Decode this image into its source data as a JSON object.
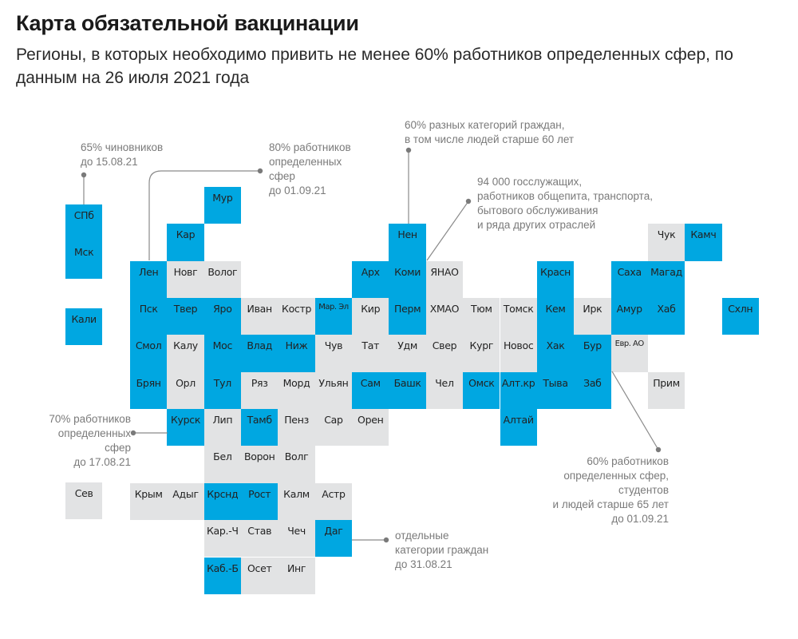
{
  "header": {
    "title": "Карта обязательной вакцинации",
    "subtitle": "Регионы, в которых необходимо привить не менее 60% работников определенных сфер, по данным на 26 июля 2021 года"
  },
  "colors": {
    "mandatory": "#00A7E1",
    "other": "#E2E3E4",
    "annotation_text": "#7A7A7A",
    "line": "#8A8A8A"
  },
  "legend_categories": {
    "B": "mandatory vaccination region",
    "G": "other region"
  },
  "regions": [
    {
      "name": "СПб",
      "grid": "west",
      "col": 0,
      "row": 0,
      "status": "B"
    },
    {
      "name": "Мск",
      "grid": "west",
      "col": 0,
      "row": 1,
      "status": "B"
    },
    {
      "name": "Кали",
      "grid": "west",
      "col": 0,
      "row": 2.8,
      "status": "B"
    },
    {
      "name": "Сев",
      "grid": "west",
      "col": 0,
      "row": 7.5,
      "status": "G"
    },
    {
      "name": "Мур",
      "col": 2,
      "row": 0,
      "status": "B"
    },
    {
      "name": "Кар",
      "col": 1,
      "row": 1,
      "status": "B"
    },
    {
      "name": "Нен",
      "col": 7,
      "row": 1,
      "status": "B"
    },
    {
      "name": "Чук",
      "col": 14,
      "row": 1,
      "status": "G"
    },
    {
      "name": "Камч",
      "col": 15,
      "row": 1,
      "status": "B"
    },
    {
      "name": "Лен",
      "col": 0,
      "row": 2,
      "status": "B"
    },
    {
      "name": "Новг",
      "col": 1,
      "row": 2,
      "status": "G"
    },
    {
      "name": "Волог",
      "col": 2,
      "row": 2,
      "status": "G"
    },
    {
      "name": "Арх",
      "col": 6,
      "row": 2,
      "status": "B"
    },
    {
      "name": "Коми",
      "col": 7,
      "row": 2,
      "status": "B"
    },
    {
      "name": "ЯНАО",
      "col": 8,
      "row": 2,
      "status": "G"
    },
    {
      "name": "Красн",
      "col": 11,
      "row": 2,
      "status": "B"
    },
    {
      "name": "Саха",
      "col": 13,
      "row": 2,
      "status": "B"
    },
    {
      "name": "Магад",
      "col": 14,
      "row": 2,
      "status": "B"
    },
    {
      "name": "Пск",
      "col": 0,
      "row": 3,
      "status": "B"
    },
    {
      "name": "Твер",
      "col": 1,
      "row": 3,
      "status": "B"
    },
    {
      "name": "Яро",
      "col": 2,
      "row": 3,
      "status": "B"
    },
    {
      "name": "Иван",
      "col": 3,
      "row": 3,
      "status": "G"
    },
    {
      "name": "Костр",
      "col": 4,
      "row": 3,
      "status": "G"
    },
    {
      "name": "Мар. Эл",
      "col": 5,
      "row": 3,
      "status": "B",
      "small": true
    },
    {
      "name": "Кир",
      "col": 6,
      "row": 3,
      "status": "G"
    },
    {
      "name": "Перм",
      "col": 7,
      "row": 3,
      "status": "B"
    },
    {
      "name": "ХМАО",
      "col": 8,
      "row": 3,
      "status": "G"
    },
    {
      "name": "Тюм",
      "col": 9,
      "row": 3,
      "status": "G"
    },
    {
      "name": "Томск",
      "col": 10,
      "row": 3,
      "status": "G"
    },
    {
      "name": "Кем",
      "col": 11,
      "row": 3,
      "status": "B"
    },
    {
      "name": "Ирк",
      "col": 12,
      "row": 3,
      "status": "G"
    },
    {
      "name": "Амур",
      "col": 13,
      "row": 3,
      "status": "B"
    },
    {
      "name": "Хаб",
      "col": 14,
      "row": 3,
      "status": "B"
    },
    {
      "name": "Схлн",
      "col": 16,
      "row": 3,
      "status": "B"
    },
    {
      "name": "Смол",
      "col": 0,
      "row": 4,
      "status": "B"
    },
    {
      "name": "Калу",
      "col": 1,
      "row": 4,
      "status": "G"
    },
    {
      "name": "Мос",
      "col": 2,
      "row": 4,
      "status": "B"
    },
    {
      "name": "Влад",
      "col": 3,
      "row": 4,
      "status": "B"
    },
    {
      "name": "Ниж",
      "col": 4,
      "row": 4,
      "status": "B"
    },
    {
      "name": "Чув",
      "col": 5,
      "row": 4,
      "status": "G"
    },
    {
      "name": "Тат",
      "col": 6,
      "row": 4,
      "status": "G"
    },
    {
      "name": "Удм",
      "col": 7,
      "row": 4,
      "status": "G"
    },
    {
      "name": "Свер",
      "col": 8,
      "row": 4,
      "status": "G"
    },
    {
      "name": "Кург",
      "col": 9,
      "row": 4,
      "status": "G"
    },
    {
      "name": "Новос",
      "col": 10,
      "row": 4,
      "status": "G"
    },
    {
      "name": "Хак",
      "col": 11,
      "row": 4,
      "status": "B"
    },
    {
      "name": "Бур",
      "col": 12,
      "row": 4,
      "status": "B"
    },
    {
      "name": "Евр. АО",
      "col": 13,
      "row": 4,
      "status": "G",
      "small": true
    },
    {
      "name": "Брян",
      "col": 0,
      "row": 5,
      "status": "B"
    },
    {
      "name": "Орл",
      "col": 1,
      "row": 5,
      "status": "G"
    },
    {
      "name": "Тул",
      "col": 2,
      "row": 5,
      "status": "B"
    },
    {
      "name": "Ряз",
      "col": 3,
      "row": 5,
      "status": "G"
    },
    {
      "name": "Морд",
      "col": 4,
      "row": 5,
      "status": "G"
    },
    {
      "name": "Ульян",
      "col": 5,
      "row": 5,
      "status": "G"
    },
    {
      "name": "Сам",
      "col": 6,
      "row": 5,
      "status": "B"
    },
    {
      "name": "Башк",
      "col": 7,
      "row": 5,
      "status": "B"
    },
    {
      "name": "Чел",
      "col": 8,
      "row": 5,
      "status": "G"
    },
    {
      "name": "Омск",
      "col": 9,
      "row": 5,
      "status": "B"
    },
    {
      "name": "Алт.кр",
      "col": 10,
      "row": 5,
      "status": "B"
    },
    {
      "name": "Тыва",
      "col": 11,
      "row": 5,
      "status": "B"
    },
    {
      "name": "Заб",
      "col": 12,
      "row": 5,
      "status": "B"
    },
    {
      "name": "Прим",
      "col": 14,
      "row": 5,
      "status": "G"
    },
    {
      "name": "Курск",
      "col": 1,
      "row": 6,
      "status": "B"
    },
    {
      "name": "Лип",
      "col": 2,
      "row": 6,
      "status": "G"
    },
    {
      "name": "Тамб",
      "col": 3,
      "row": 6,
      "status": "B"
    },
    {
      "name": "Пенз",
      "col": 4,
      "row": 6,
      "status": "G"
    },
    {
      "name": "Сар",
      "col": 5,
      "row": 6,
      "status": "G"
    },
    {
      "name": "Орен",
      "col": 6,
      "row": 6,
      "status": "G"
    },
    {
      "name": "Алтай",
      "col": 10,
      "row": 6,
      "status": "B"
    },
    {
      "name": "Бел",
      "col": 2,
      "row": 7,
      "status": "G"
    },
    {
      "name": "Ворон",
      "col": 3,
      "row": 7,
      "status": "G"
    },
    {
      "name": "Волг",
      "col": 4,
      "row": 7,
      "status": "G"
    },
    {
      "name": "Крым",
      "col": 0,
      "row": 8,
      "status": "G"
    },
    {
      "name": "Адыг",
      "col": 1,
      "row": 8,
      "status": "G"
    },
    {
      "name": "Крснд",
      "col": 2,
      "row": 8,
      "status": "B"
    },
    {
      "name": "Рост",
      "col": 3,
      "row": 8,
      "status": "B"
    },
    {
      "name": "Калм",
      "col": 4,
      "row": 8,
      "status": "G"
    },
    {
      "name": "Астр",
      "col": 5,
      "row": 8,
      "status": "G"
    },
    {
      "name": "Кар.-Ч",
      "col": 2,
      "row": 9,
      "status": "G"
    },
    {
      "name": "Став",
      "col": 3,
      "row": 9,
      "status": "G"
    },
    {
      "name": "Чеч",
      "col": 4,
      "row": 9,
      "status": "G"
    },
    {
      "name": "Даг",
      "col": 5,
      "row": 9,
      "status": "B"
    },
    {
      "name": "Каб.-Б",
      "col": 2,
      "row": 10,
      "status": "B"
    },
    {
      "name": "Осет",
      "col": 3,
      "row": 10,
      "status": "G"
    },
    {
      "name": "Инг",
      "col": 4,
      "row": 10,
      "status": "G"
    }
  ],
  "annotations": [
    {
      "id": "spb",
      "region": "СПб",
      "text": "65% чиновников\nдо 15.08.21"
    },
    {
      "id": "len",
      "region": "Лен",
      "text": "80% работников\nопределенных\nсфер\nдо 01.09.21"
    },
    {
      "id": "nen",
      "region": "Нен",
      "text": "60% разных категорий граждан,\nв том числе людей старше 60 лет"
    },
    {
      "id": "komi",
      "region": "Коми",
      "text": "94 000 госслужащих,\nработников общепита, транспорта,\nбытового обслуживания\nи ряда других отраслей"
    },
    {
      "id": "kursk",
      "region": "Курск",
      "text": "70% работников\nопределенных\nсфер\nдо 17.08.21"
    },
    {
      "id": "dag",
      "region": "Даг",
      "text": "отдельные\nкатегории граждан\nдо 31.08.21"
    },
    {
      "id": "bur",
      "region": "Бур",
      "text": "60% работников\nопределенных сфер,\nстудентов\nи людей старше 65 лет\nдо 01.09.21"
    }
  ]
}
